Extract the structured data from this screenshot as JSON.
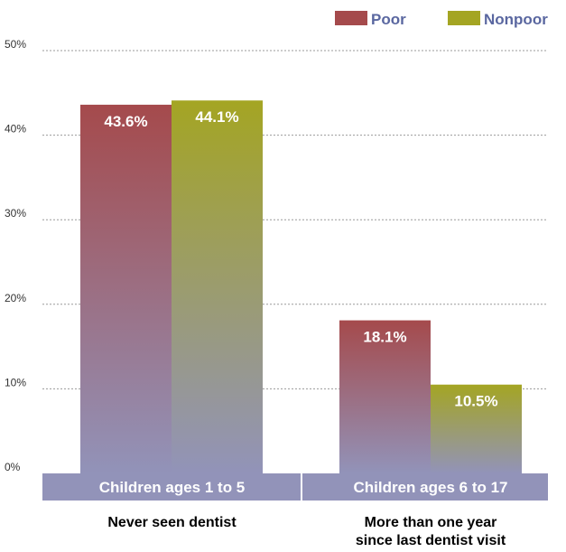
{
  "chart_data": {
    "type": "bar",
    "categories": [
      "Children ages 1 to 5",
      "Children ages 6 to 17"
    ],
    "group_labels": [
      [
        "Never seen dentist"
      ],
      [
        "More than one year",
        "since last dentist visit"
      ]
    ],
    "series": [
      {
        "name": "Poor",
        "values": [
          43.6,
          18.1
        ],
        "labels": [
          "43.6%",
          "18.1%"
        ],
        "color": "#a54a4c"
      },
      {
        "name": "Nonpoor",
        "values": [
          44.1,
          10.5
        ],
        "labels": [
          "44.1%",
          "10.5%"
        ],
        "color": "#a4a523"
      }
    ],
    "ylim": [
      0,
      50
    ],
    "y_ticks": [
      {
        "value": 0,
        "label": "0%"
      },
      {
        "value": 10,
        "label": "10%"
      },
      {
        "value": 20,
        "label": "20%"
      },
      {
        "value": 30,
        "label": "30%"
      },
      {
        "value": 40,
        "label": "40%"
      },
      {
        "value": 50,
        "label": "50%"
      }
    ],
    "grid": true,
    "legend": "top-right",
    "base_color": "#9293b9"
  }
}
